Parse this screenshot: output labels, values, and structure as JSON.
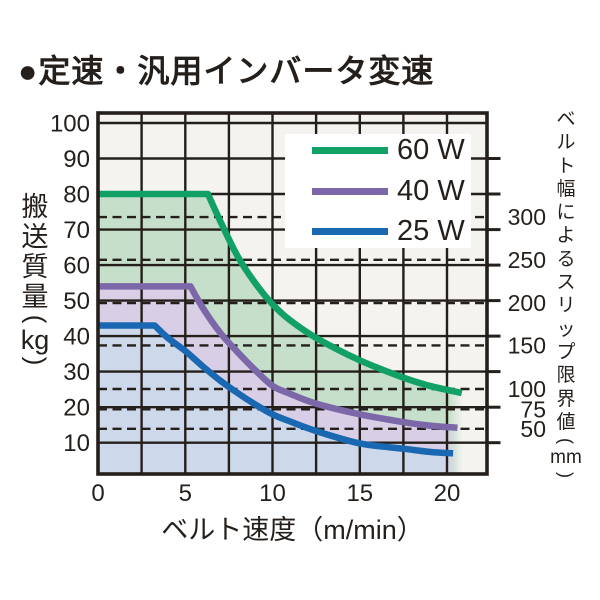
{
  "title": "●定速・汎用インバータ変速",
  "style": {
    "ink": "#241f1b",
    "plot_background": "#f4f3f0",
    "legend_background": "#ffffff"
  },
  "chart_data": {
    "type": "line",
    "title": "定速・汎用インバータ変速",
    "xlabel": "ベルト速度（m/min）",
    "ylabel_left": "搬送質量(kg)",
    "ylabel_right": "ベルト幅によるスリップ限界値(mm)",
    "xlim": [
      0,
      22.3
    ],
    "ylim": [
      1,
      103
    ],
    "x_ticks": [
      0,
      5,
      10,
      15,
      20
    ],
    "x_grid_step": 2.5,
    "y_ticks_left": [
      100,
      90,
      80,
      70,
      60,
      50,
      40,
      30,
      20,
      10
    ],
    "grid": true,
    "legend_position": "top-right",
    "right_axis_marks": [
      {
        "label": "300",
        "kg": 73.5
      },
      {
        "label": "250",
        "kg": 61.5
      },
      {
        "label": "200",
        "kg": 49.3
      },
      {
        "label": "150",
        "kg": 37.4
      },
      {
        "label": "100",
        "kg": 25.1
      },
      {
        "label": "75",
        "kg": 19.4
      },
      {
        "label": "50",
        "kg": 13.9
      }
    ],
    "series": [
      {
        "name": "60 W",
        "stroke": "#11a066",
        "fill": "#c6dfcb",
        "points": [
          [
            0,
            80
          ],
          [
            6.3,
            80
          ],
          [
            7,
            72.5
          ],
          [
            8,
            62.5
          ],
          [
            9,
            55
          ],
          [
            10,
            49
          ],
          [
            11,
            44.5
          ],
          [
            12.5,
            39.5
          ],
          [
            15,
            33.2
          ],
          [
            17.5,
            28.3
          ],
          [
            19,
            26
          ],
          [
            20.85,
            24
          ]
        ]
      },
      {
        "name": "40 W",
        "stroke": "#7c68a9",
        "fill": "#d8cfe6",
        "points": [
          [
            0,
            54
          ],
          [
            5.3,
            54
          ],
          [
            6,
            48
          ],
          [
            7,
            41
          ],
          [
            8,
            35.5
          ],
          [
            9,
            30.5
          ],
          [
            10,
            26
          ],
          [
            11,
            23.8
          ],
          [
            12.5,
            21
          ],
          [
            15,
            18
          ],
          [
            17.5,
            15.8
          ],
          [
            19,
            14.8
          ],
          [
            20.6,
            14.2
          ]
        ]
      },
      {
        "name": "25 W",
        "stroke": "#1a68b2",
        "fill": "#cdd8eb",
        "points": [
          [
            0,
            43
          ],
          [
            3.25,
            43
          ],
          [
            4,
            39.5
          ],
          [
            5,
            35.8
          ],
          [
            6,
            31.5
          ],
          [
            7,
            27.5
          ],
          [
            8,
            24
          ],
          [
            9,
            20.8
          ],
          [
            10,
            18
          ],
          [
            11,
            16
          ],
          [
            12.5,
            13.3
          ],
          [
            15,
            9.8
          ],
          [
            17.5,
            8.3
          ],
          [
            19,
            7.4
          ],
          [
            20.35,
            7
          ]
        ]
      }
    ]
  }
}
